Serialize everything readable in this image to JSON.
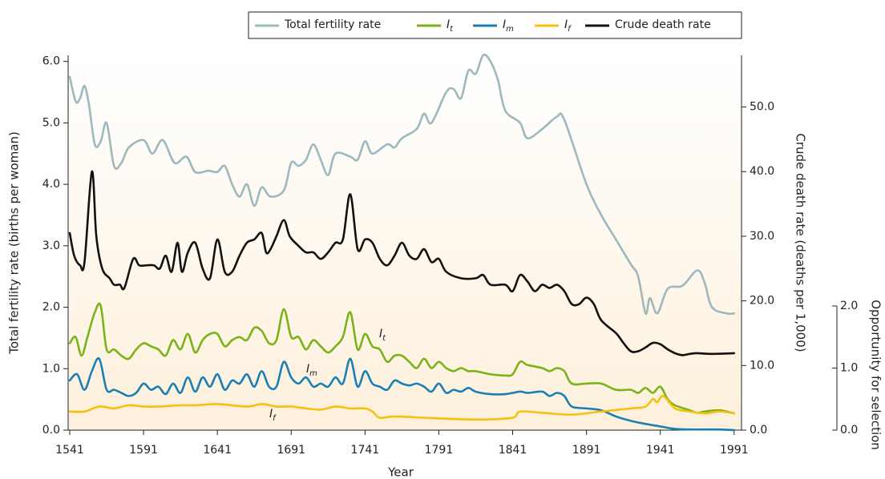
{
  "chart_data": {
    "type": "line",
    "xlabel": "Year",
    "ylabel": "Total fertility rate (births per woman)",
    "y2label": "Crude death rate (deaths per 1,000)",
    "y3label": "Opportunity for selection",
    "xlim": [
      1541,
      1996
    ],
    "xticks": [
      1541,
      1591,
      1641,
      1691,
      1741,
      1791,
      1841,
      1891,
      1941,
      1991
    ],
    "ylim": [
      0,
      6.1
    ],
    "yticks": [
      {
        "value": 0,
        "label": "0.0"
      },
      {
        "value": 1,
        "label": "1.0"
      },
      {
        "value": 2,
        "label": "2.0"
      },
      {
        "value": 3,
        "label": "3.0"
      },
      {
        "value": 4,
        "label": "4.0"
      },
      {
        "value": 5,
        "label": "5.0"
      },
      {
        "value": 6,
        "label": "6.0"
      }
    ],
    "y2lim": [
      0,
      58
    ],
    "y2ticks": [
      {
        "value": 0,
        "label": "0.0"
      },
      {
        "value": 10,
        "label": "10.0"
      },
      {
        "value": 20,
        "label": "20.0"
      },
      {
        "value": 30,
        "label": "30.0"
      },
      {
        "value": 40,
        "label": "40.0"
      },
      {
        "value": 50,
        "label": "50.0"
      }
    ],
    "y3lim": [
      0,
      2
    ],
    "y3ticks": [
      {
        "value": 0,
        "label": "0.0"
      },
      {
        "value": 1,
        "label": "1.0"
      },
      {
        "value": 2,
        "label": "2.0"
      }
    ],
    "series": [
      {
        "name": "Total fertility rate",
        "color": "#9db8be",
        "x": [
          1541,
          1545,
          1548,
          1551,
          1554,
          1558,
          1562,
          1566,
          1571,
          1576,
          1581,
          1591,
          1597,
          1604,
          1612,
          1620,
          1626,
          1635,
          1641,
          1646,
          1651,
          1656,
          1661,
          1666,
          1671,
          1677,
          1686,
          1691,
          1696,
          1701,
          1706,
          1711,
          1716,
          1721,
          1731,
          1736,
          1741,
          1746,
          1756,
          1761,
          1766,
          1776,
          1781,
          1786,
          1796,
          1801,
          1806,
          1811,
          1816,
          1821,
          1826,
          1831,
          1836,
          1846,
          1851,
          1861,
          1871,
          1876,
          1891,
          1901,
          1911,
          1921,
          1926,
          1931,
          1934,
          1939,
          1946,
          1956,
          1966,
          1971,
          1976,
          1986,
          1991
        ],
        "values": [
          5.75,
          5.35,
          5.4,
          5.6,
          5.3,
          4.65,
          4.7,
          5.0,
          4.3,
          4.35,
          4.6,
          4.72,
          4.5,
          4.72,
          4.35,
          4.45,
          4.2,
          4.22,
          4.2,
          4.3,
          4.0,
          3.8,
          4.0,
          3.65,
          3.95,
          3.8,
          3.9,
          4.35,
          4.3,
          4.4,
          4.65,
          4.4,
          4.15,
          4.5,
          4.45,
          4.4,
          4.7,
          4.5,
          4.65,
          4.6,
          4.75,
          4.9,
          5.15,
          5.0,
          5.5,
          5.55,
          5.4,
          5.85,
          5.8,
          6.1,
          6.0,
          5.7,
          5.2,
          5.0,
          4.75,
          4.9,
          5.1,
          5.05,
          4.0,
          3.5,
          3.1,
          2.7,
          2.5,
          1.9,
          2.15,
          1.9,
          2.3,
          2.35,
          2.6,
          2.4,
          2.0,
          1.9,
          1.9
        ]
      },
      {
        "name": "It",
        "color": "#7ab317",
        "axis": "y3",
        "x": [
          1541,
          1545,
          1549,
          1553,
          1558,
          1562,
          1566,
          1571,
          1576,
          1581,
          1586,
          1591,
          1596,
          1601,
          1606,
          1611,
          1616,
          1621,
          1626,
          1631,
          1636,
          1641,
          1646,
          1651,
          1656,
          1661,
          1666,
          1671,
          1676,
          1681,
          1686,
          1691,
          1696,
          1701,
          1706,
          1711,
          1716,
          1721,
          1726,
          1731,
          1736,
          1741,
          1746,
          1751,
          1756,
          1761,
          1766,
          1771,
          1776,
          1781,
          1786,
          1791,
          1796,
          1801,
          1806,
          1811,
          1816,
          1826,
          1836,
          1841,
          1846,
          1851,
          1861,
          1866,
          1871,
          1876,
          1881,
          1891,
          1901,
          1911,
          1921,
          1926,
          1931,
          1936,
          1941,
          1946,
          1951,
          1961,
          1966,
          1971,
          1981,
          1991
        ],
        "values": [
          1.4,
          1.5,
          1.2,
          1.5,
          1.9,
          2.0,
          1.3,
          1.3,
          1.2,
          1.15,
          1.3,
          1.4,
          1.35,
          1.3,
          1.2,
          1.45,
          1.3,
          1.55,
          1.25,
          1.45,
          1.55,
          1.55,
          1.35,
          1.45,
          1.5,
          1.45,
          1.65,
          1.6,
          1.4,
          1.45,
          1.95,
          1.5,
          1.5,
          1.3,
          1.45,
          1.35,
          1.25,
          1.35,
          1.5,
          1.9,
          1.3,
          1.55,
          1.35,
          1.3,
          1.1,
          1.2,
          1.2,
          1.1,
          1.0,
          1.15,
          1.0,
          1.1,
          1.0,
          0.95,
          1.0,
          0.95,
          0.95,
          0.9,
          0.88,
          0.9,
          1.1,
          1.05,
          1.0,
          0.95,
          1.0,
          0.95,
          0.75,
          0.75,
          0.75,
          0.65,
          0.65,
          0.6,
          0.68,
          0.6,
          0.7,
          0.5,
          0.4,
          0.32,
          0.28,
          0.3,
          0.32,
          0.27
        ]
      },
      {
        "name": "Im",
        "color": "#1a7fb5",
        "axis": "y3",
        "x": [
          1541,
          1546,
          1551,
          1556,
          1561,
          1566,
          1571,
          1576,
          1581,
          1586,
          1591,
          1596,
          1601,
          1606,
          1611,
          1616,
          1621,
          1626,
          1631,
          1636,
          1641,
          1646,
          1651,
          1656,
          1661,
          1666,
          1671,
          1676,
          1681,
          1686,
          1691,
          1696,
          1701,
          1706,
          1711,
          1716,
          1721,
          1726,
          1731,
          1736,
          1741,
          1746,
          1751,
          1756,
          1761,
          1766,
          1771,
          1776,
          1781,
          1786,
          1791,
          1796,
          1801,
          1806,
          1811,
          1816,
          1826,
          1836,
          1846,
          1851,
          1861,
          1866,
          1871,
          1876,
          1881,
          1891,
          1901,
          1911,
          1921,
          1931,
          1941,
          1951,
          1961,
          1981,
          1991
        ],
        "values": [
          0.8,
          0.9,
          0.65,
          0.95,
          1.15,
          0.65,
          0.65,
          0.6,
          0.55,
          0.6,
          0.75,
          0.65,
          0.7,
          0.58,
          0.75,
          0.6,
          0.85,
          0.62,
          0.85,
          0.7,
          0.9,
          0.65,
          0.8,
          0.75,
          0.9,
          0.7,
          0.95,
          0.7,
          0.7,
          1.1,
          0.85,
          0.75,
          0.85,
          0.7,
          0.75,
          0.7,
          0.85,
          0.75,
          1.15,
          0.7,
          0.95,
          0.75,
          0.7,
          0.65,
          0.8,
          0.75,
          0.72,
          0.75,
          0.7,
          0.62,
          0.75,
          0.6,
          0.65,
          0.62,
          0.68,
          0.62,
          0.58,
          0.58,
          0.62,
          0.6,
          0.62,
          0.55,
          0.6,
          0.55,
          0.38,
          0.35,
          0.32,
          0.22,
          0.15,
          0.1,
          0.06,
          0.02,
          0.01,
          0.01,
          0.0
        ]
      },
      {
        "name": "If",
        "color": "#f4c10f",
        "axis": "y3",
        "x": [
          1541,
          1551,
          1561,
          1571,
          1581,
          1591,
          1601,
          1616,
          1626,
          1641,
          1661,
          1671,
          1681,
          1691,
          1701,
          1711,
          1721,
          1731,
          1741,
          1746,
          1751,
          1761,
          1781,
          1801,
          1821,
          1841,
          1846,
          1861,
          1881,
          1901,
          1921,
          1931,
          1936,
          1939,
          1943,
          1951,
          1961,
          1971,
          1981,
          1991
        ],
        "values": [
          0.3,
          0.3,
          0.38,
          0.35,
          0.4,
          0.38,
          0.38,
          0.4,
          0.4,
          0.42,
          0.38,
          0.42,
          0.38,
          0.38,
          0.35,
          0.33,
          0.38,
          0.35,
          0.35,
          0.3,
          0.2,
          0.22,
          0.2,
          0.18,
          0.17,
          0.2,
          0.3,
          0.28,
          0.25,
          0.3,
          0.35,
          0.38,
          0.5,
          0.45,
          0.55,
          0.35,
          0.3,
          0.27,
          0.3,
          0.27
        ]
      },
      {
        "name": "Crude death rate",
        "color": "#111111",
        "axis": "y2",
        "x": [
          1541,
          1544,
          1548,
          1551,
          1556,
          1559,
          1563,
          1568,
          1571,
          1575,
          1578,
          1584,
          1588,
          1593,
          1598,
          1602,
          1606,
          1610,
          1614,
          1617,
          1621,
          1626,
          1631,
          1636,
          1641,
          1646,
          1651,
          1656,
          1661,
          1666,
          1671,
          1674,
          1677,
          1681,
          1686,
          1690,
          1696,
          1701,
          1706,
          1711,
          1716,
          1721,
          1726,
          1731,
          1736,
          1741,
          1746,
          1751,
          1756,
          1761,
          1766,
          1771,
          1776,
          1781,
          1786,
          1791,
          1796,
          1806,
          1816,
          1821,
          1826,
          1836,
          1841,
          1846,
          1851,
          1856,
          1861,
          1866,
          1871,
          1876,
          1881,
          1886,
          1891,
          1896,
          1901,
          1911,
          1916,
          1921,
          1926,
          1931,
          1936,
          1941,
          1946,
          1951,
          1956,
          1961,
          1966,
          1976,
          1991
        ],
        "values": [
          30.5,
          27,
          25.5,
          26,
          40,
          30,
          25,
          23.5,
          22.5,
          22.5,
          22,
          26.5,
          25.5,
          25.5,
          25.5,
          25,
          27,
          24.5,
          29,
          24.5,
          27.5,
          29,
          25,
          23.5,
          29.5,
          24.5,
          24.5,
          27,
          29,
          29.5,
          30.5,
          27.5,
          28,
          30,
          32.5,
          30,
          28.5,
          27.5,
          27.5,
          26.5,
          27.5,
          29,
          29.5,
          36.5,
          28,
          29.5,
          29,
          26.5,
          25.5,
          27,
          29,
          27,
          26.5,
          28,
          26,
          26.5,
          24.5,
          23.5,
          23.5,
          24,
          22.5,
          22.5,
          21.5,
          24,
          23,
          21.5,
          22.5,
          22,
          22.5,
          21.5,
          19.5,
          19.5,
          20.5,
          19.5,
          17,
          15,
          13.5,
          12.2,
          12.2,
          12.8,
          13.5,
          13.3,
          12.5,
          11.9,
          11.6,
          11.8,
          11.9,
          11.8,
          11.9
        ]
      }
    ]
  }
}
